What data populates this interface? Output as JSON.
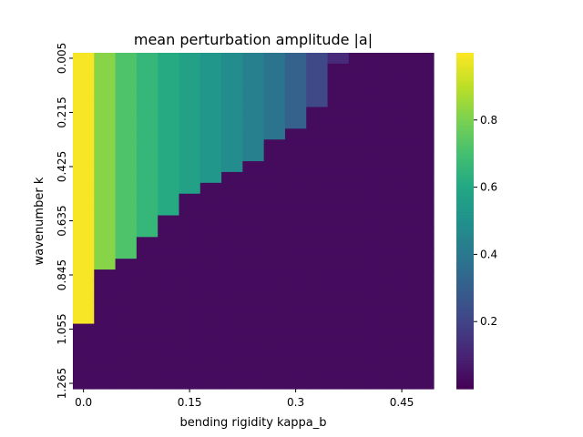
{
  "chart_data": {
    "type": "heatmap",
    "title": "mean perturbation amplitude |a|",
    "xlabel": "bending rigidity kappa_b",
    "ylabel": "wavenumber k",
    "x_tick_labels": [
      "0.0",
      "0.15",
      "0.3",
      "0.45"
    ],
    "x_tick_values": [
      0.0,
      0.15,
      0.3,
      0.45
    ],
    "y_tick_labels": [
      "0.005",
      "0.215",
      "0.425",
      "0.635",
      "0.845",
      "1.055",
      "1.265"
    ],
    "y_tick_values": [
      0.005,
      0.215,
      0.425,
      0.635,
      0.845,
      1.055,
      1.265
    ],
    "kappa_b": [
      0.0,
      0.03,
      0.06,
      0.09,
      0.12,
      0.15,
      0.18,
      0.21,
      0.24,
      0.27,
      0.3,
      0.33,
      0.36,
      0.39,
      0.42,
      0.45,
      0.48
    ],
    "k": [
      0.005,
      0.047,
      0.089,
      0.131,
      0.173,
      0.215,
      0.257,
      0.299,
      0.341,
      0.383,
      0.425,
      0.467,
      0.509,
      0.551,
      0.593,
      0.635,
      0.677,
      0.719,
      0.761,
      0.803,
      0.845,
      0.887,
      0.929,
      0.971,
      1.013,
      1.055,
      1.097,
      1.139,
      1.181,
      1.223,
      1.265
    ],
    "thresholds": [
      31,
      31,
      31,
      31,
      31,
      31,
      31,
      31,
      31,
      31,
      31,
      31,
      31,
      31,
      31,
      31,
      31
    ],
    "cutoff_rows": [
      25,
      20,
      19,
      17,
      15,
      13,
      12,
      11,
      10,
      8,
      7,
      5,
      1,
      0,
      0,
      0,
      0
    ],
    "column_levels": [
      0.99,
      0.82,
      0.72,
      0.66,
      0.61,
      0.57,
      0.52,
      0.48,
      0.43,
      0.38,
      0.31,
      0.22,
      0.12,
      0.02,
      0.02,
      0.02,
      0.02
    ],
    "below_level": 0.03,
    "colorbar": {
      "colormap": "viridis",
      "range": [
        0.0,
        1.0
      ],
      "tick_values": [
        0.2,
        0.4,
        0.6,
        0.8
      ],
      "tick_labels": [
        "0.2",
        "0.4",
        "0.6",
        "0.8"
      ]
    },
    "grid": false,
    "legend": "none"
  }
}
